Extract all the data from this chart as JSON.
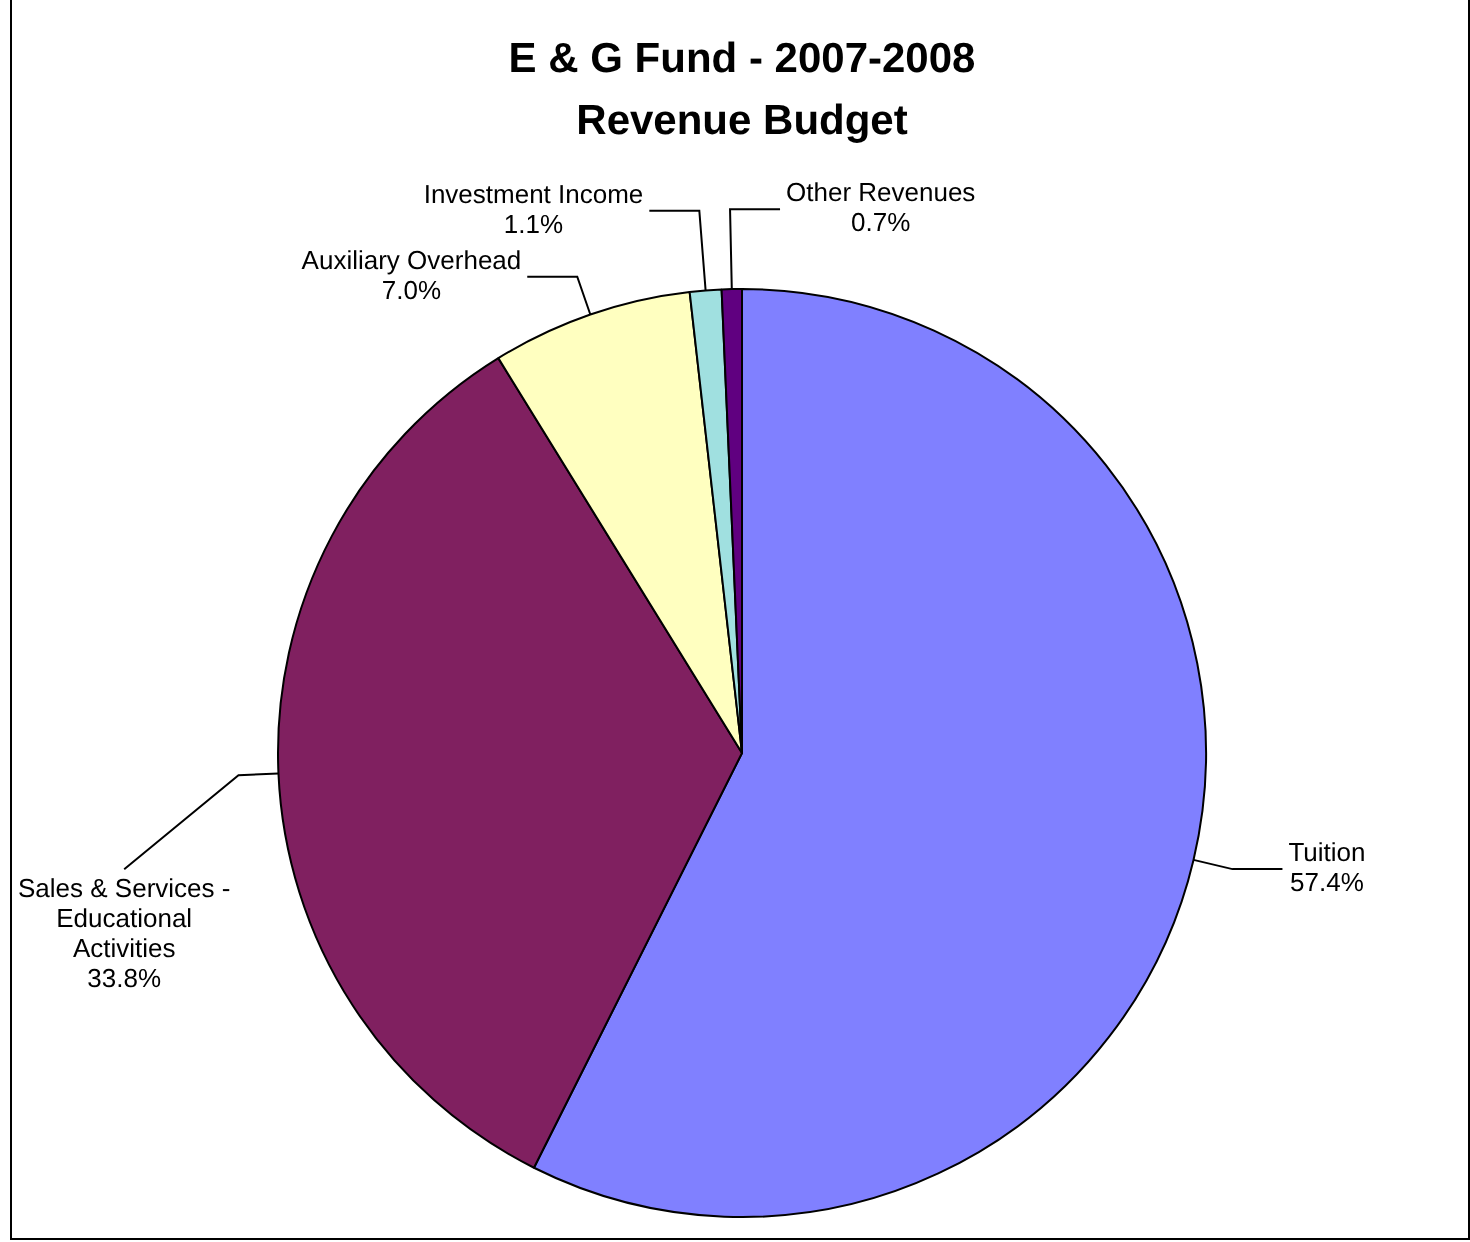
{
  "chart_data": {
    "type": "pie",
    "title": "E & G Fund - 2007-2008\nRevenue Budget",
    "categories": [
      "Tuition",
      "Sales & Services - Educational Activities",
      "Auxiliary Overhead",
      "Investment Income",
      "Other Revenues"
    ],
    "values": [
      57.4,
      33.8,
      7.0,
      1.1,
      0.7
    ],
    "value_labels": [
      "57.4%",
      "33.8%",
      "7.0%",
      "1.1%",
      "0.7%"
    ],
    "colors": [
      "#8080ff",
      "#802060",
      "#ffffc0",
      "#a0e0e0",
      "#600080"
    ],
    "legend": false
  }
}
